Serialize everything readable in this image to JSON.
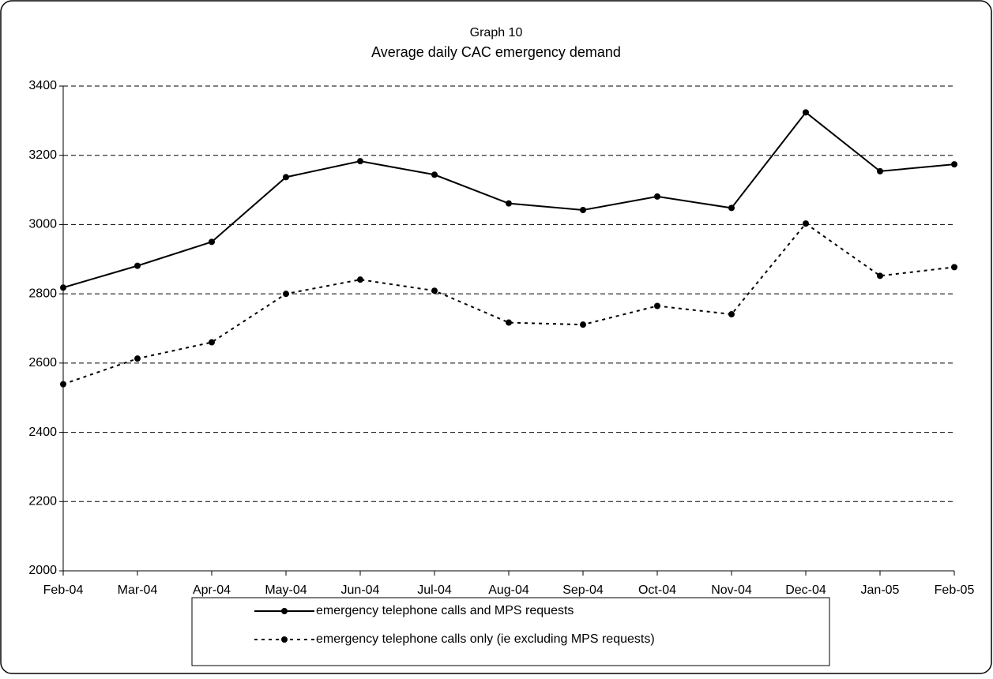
{
  "chart_data": {
    "type": "line",
    "title": "Graph 10",
    "subtitle": "Average daily CAC emergency demand",
    "categories": [
      "Feb-04",
      "Mar-04",
      "Apr-04",
      "May-04",
      "Jun-04",
      "Jul-04",
      "Aug-04",
      "Sep-04",
      "Oct-04",
      "Nov-04",
      "Dec-04",
      "Jan-05",
      "Feb-05"
    ],
    "series": [
      {
        "name": "emergency telephone calls and MPS requests",
        "color": "#000000",
        "dash": "solid",
        "values": [
          2818,
          2881,
          2950,
          3137,
          3183,
          3144,
          3061,
          3042,
          3081,
          3048,
          3324,
          3154,
          3174
        ]
      },
      {
        "name": "emergency telephone calls only (ie excluding MPS requests)",
        "color": "#000000",
        "dash": "dotted",
        "values": [
          2539,
          2613,
          2660,
          2800,
          2841,
          2809,
          2717,
          2711,
          2765,
          2741,
          3003,
          2852,
          2877
        ]
      }
    ],
    "ylim": [
      2000,
      3400
    ],
    "yticks": [
      2000,
      2200,
      2400,
      2600,
      2800,
      3000,
      3200,
      3400
    ],
    "grid": true,
    "legend": "bottom"
  }
}
